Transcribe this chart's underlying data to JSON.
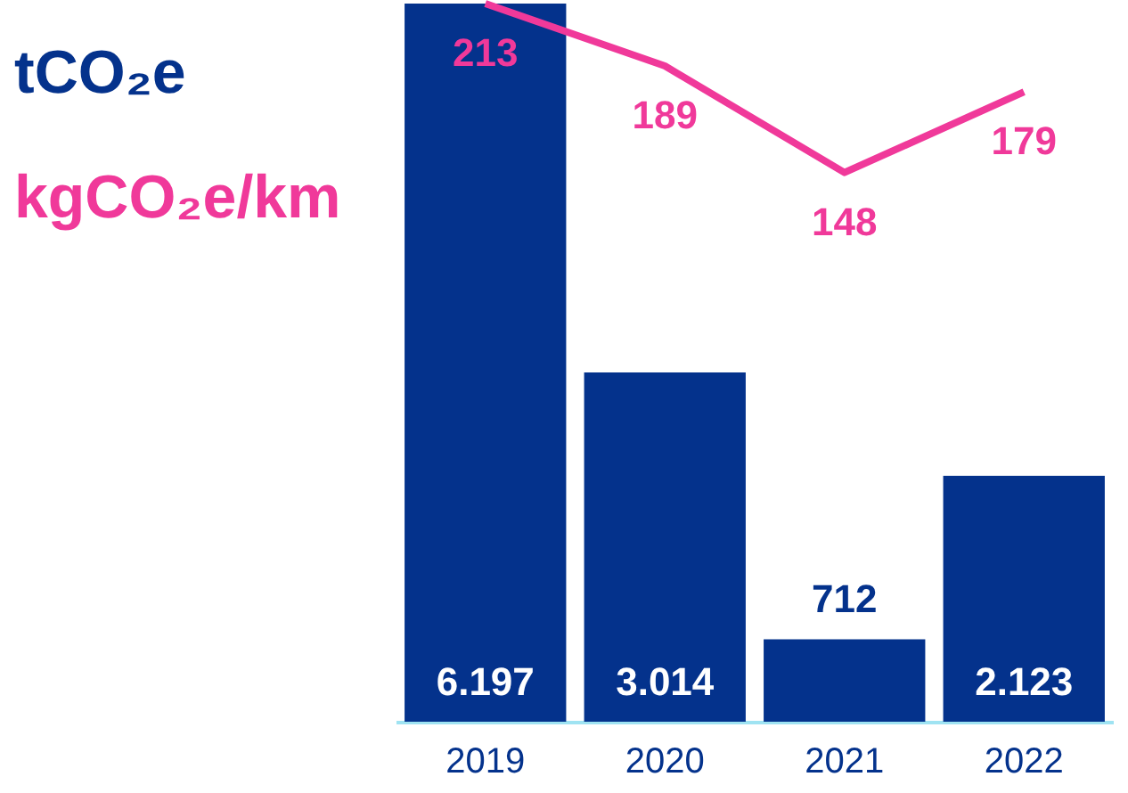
{
  "chart_data": {
    "type": "bar",
    "categories": [
      "2019",
      "2020",
      "2021",
      "2022"
    ],
    "series": [
      {
        "name": "tCO₂e",
        "color": "#04328c",
        "values": [
          6197,
          3014,
          712,
          2123
        ],
        "value_labels": [
          "6.197",
          "3.014",
          "712",
          "2.123"
        ]
      },
      {
        "name": "kgCO₂e/km",
        "type": "line",
        "axis": "y2",
        "color": "#f0399a",
        "values": [
          213,
          189,
          148,
          179
        ],
        "value_labels": [
          "213",
          "189",
          "148",
          "179"
        ]
      }
    ],
    "grid": false
  }
}
